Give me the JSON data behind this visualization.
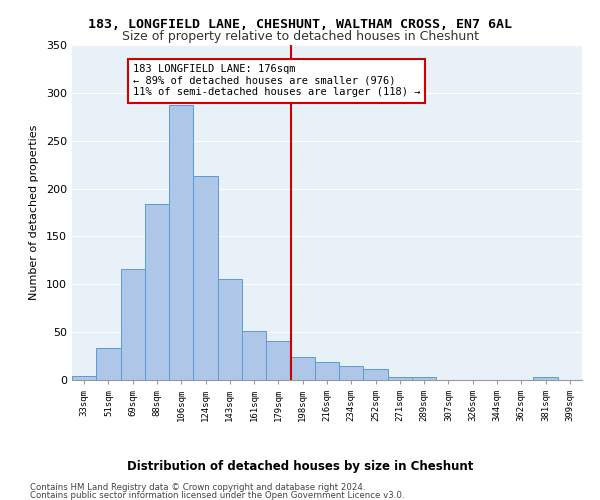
{
  "title1": "183, LONGFIELD LANE, CHESHUNT, WALTHAM CROSS, EN7 6AL",
  "title2": "Size of property relative to detached houses in Cheshunt",
  "xlabel": "Distribution of detached houses by size in Cheshunt",
  "ylabel": "Number of detached properties",
  "categories": [
    "33sqm",
    "51sqm",
    "69sqm",
    "88sqm",
    "106sqm",
    "124sqm",
    "143sqm",
    "161sqm",
    "179sqm",
    "198sqm",
    "216sqm",
    "234sqm",
    "252sqm",
    "271sqm",
    "289sqm",
    "307sqm",
    "326sqm",
    "344sqm",
    "362sqm",
    "381sqm",
    "399sqm"
  ],
  "values": [
    4,
    33,
    116,
    184,
    287,
    213,
    106,
    51,
    41,
    24,
    19,
    15,
    12,
    3,
    3,
    0,
    0,
    0,
    0,
    3,
    0
  ],
  "bar_color": "#aec6e8",
  "bar_edge_color": "#5b9bd5",
  "vline_x": 8.5,
  "vline_color": "#cc0000",
  "annotation_text": "183 LONGFIELD LANE: 176sqm\n← 89% of detached houses are smaller (976)\n11% of semi-detached houses are larger (118) →",
  "annotation_box_color": "#ffffff",
  "annotation_box_edge_color": "#cc0000",
  "ylim": [
    0,
    350
  ],
  "yticks": [
    0,
    50,
    100,
    150,
    200,
    250,
    300,
    350
  ],
  "background_color": "#e8f0f8",
  "grid_color": "#ffffff",
  "footer1": "Contains HM Land Registry data © Crown copyright and database right 2024.",
  "footer2": "Contains public sector information licensed under the Open Government Licence v3.0."
}
